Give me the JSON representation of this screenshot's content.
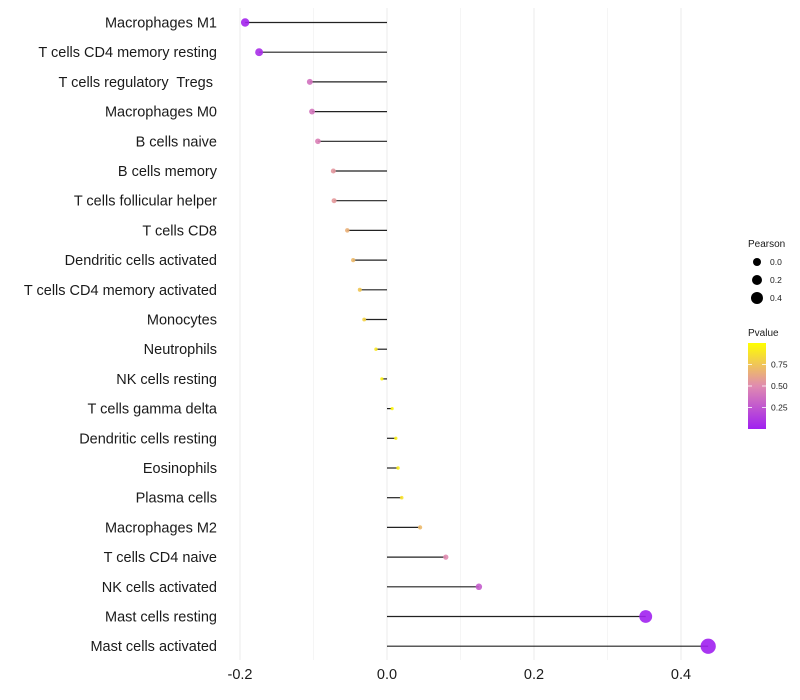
{
  "chart_data": {
    "type": "lollipop",
    "title": "",
    "xlabel": "",
    "ylabel": "",
    "xlim": [
      -0.2,
      0.45
    ],
    "x_ticks": [
      -0.2,
      0.0,
      0.2,
      0.4
    ],
    "x_tick_labels": [
      "-0.2",
      "0.0",
      "0.2",
      "0.4"
    ],
    "grid": true,
    "categories": [
      "Macrophages M1",
      "T cells CD4 memory resting",
      "T cells regulatory  Tregs ",
      "Macrophages M0",
      "B cells naive",
      "B cells memory",
      "T cells follicular helper",
      "T cells CD8",
      "Dendritic cells activated",
      "T cells CD4 memory activated",
      "Monocytes",
      "Neutrophils",
      "NK cells resting",
      "T cells gamma delta",
      "Dendritic cells resting",
      "Eosinophils",
      "Plasma cells",
      "Macrophages M2",
      "T cells CD4 naive",
      "NK cells activated",
      "Mast cells resting",
      "Mast cells activated"
    ],
    "values": [
      -0.193,
      -0.174,
      -0.105,
      -0.102,
      -0.094,
      -0.073,
      -0.072,
      -0.054,
      -0.046,
      -0.037,
      -0.031,
      -0.015,
      -0.007,
      0.007,
      0.012,
      0.015,
      0.02,
      0.045,
      0.08,
      0.125,
      0.352,
      0.437
    ],
    "pvalues": [
      0.02,
      0.06,
      0.38,
      0.4,
      0.45,
      0.55,
      0.56,
      0.66,
      0.7,
      0.76,
      0.8,
      0.9,
      0.95,
      0.96,
      0.93,
      0.92,
      0.87,
      0.7,
      0.5,
      0.28,
      0.01,
      0.001
    ],
    "legend": {
      "size": {
        "title": "Pearson",
        "labels": [
          "0.0",
          "0.2",
          "0.4"
        ],
        "values": [
          0.0,
          0.2,
          0.4
        ]
      },
      "color": {
        "title": "Pvalue",
        "labels": [
          "0.75",
          "0.50",
          "0.25"
        ],
        "values": [
          0.75,
          0.5,
          0.25
        ],
        "range": [
          0.0,
          1.0
        ],
        "low_color": "#a020f0",
        "mid_color": "#e08bb0",
        "high_color": "#ffff00"
      },
      "position": "right"
    }
  }
}
